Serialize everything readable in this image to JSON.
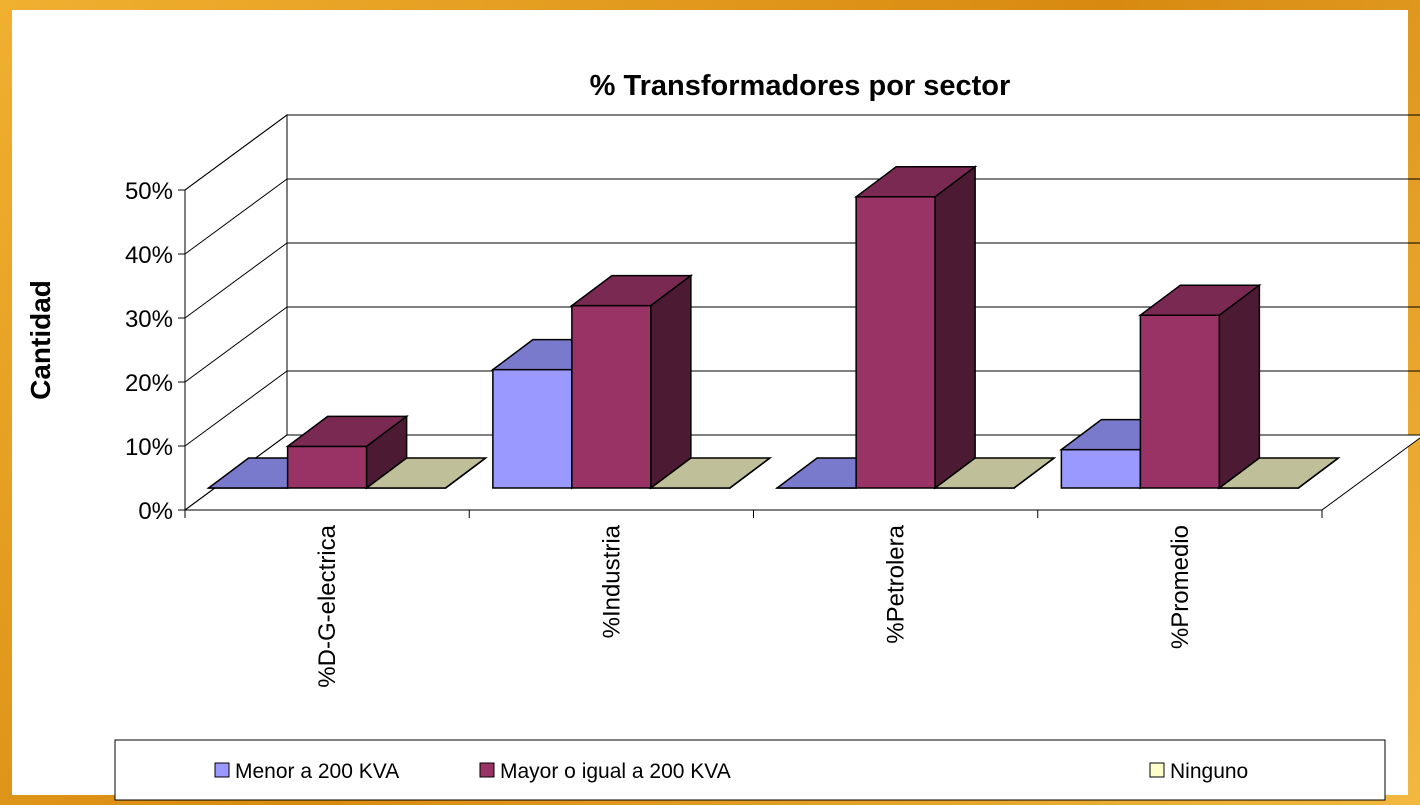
{
  "chart_data": {
    "type": "bar3d",
    "title": "% Transformadores por sector",
    "y_label": "Cantidad",
    "categories": [
      "%D-G-electrica",
      "%Industria",
      "%Petrolera",
      "%Promedio"
    ],
    "series": [
      {
        "name": "Menor a 200 KVA",
        "color": "#9999ff",
        "values": [
          0,
          18.5,
          0,
          6
        ]
      },
      {
        "name": "Mayor o igual a 200 KVA",
        "color": "#993366",
        "values": [
          6.5,
          28.5,
          45.5,
          27
        ]
      },
      {
        "name": "Ninguno",
        "color": "#ffffcc",
        "values": [
          0,
          0,
          0,
          0
        ]
      }
    ],
    "ylim": [
      0,
      50
    ],
    "yticks": [
      {
        "value": 0,
        "label": "0%"
      },
      {
        "value": 10,
        "label": "10%"
      },
      {
        "value": 20,
        "label": "20%"
      },
      {
        "value": 30,
        "label": "30%"
      },
      {
        "value": 40,
        "label": "40%"
      },
      {
        "value": 50,
        "label": "50%"
      }
    ],
    "grid": true
  }
}
